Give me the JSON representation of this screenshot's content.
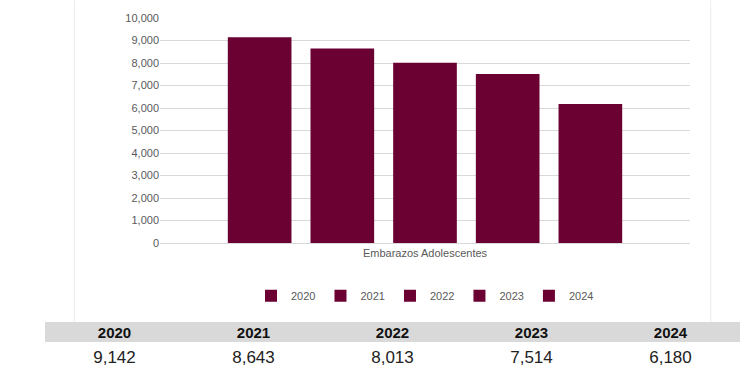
{
  "chart_data": {
    "type": "bar",
    "categories": [
      "Embarazos Adolescentes"
    ],
    "series": [
      {
        "name": "2020",
        "color": "#6b0033",
        "values": [
          9142
        ]
      },
      {
        "name": "2021",
        "color": "#6b0033",
        "values": [
          8643
        ]
      },
      {
        "name": "2022",
        "color": "#6b0033",
        "values": [
          8013
        ]
      },
      {
        "name": "2023",
        "color": "#6b0033",
        "values": [
          7514
        ]
      },
      {
        "name": "2024",
        "color": "#6b0033",
        "values": [
          6180
        ]
      }
    ],
    "ylim": [
      0,
      10000
    ],
    "yticks": [
      0,
      {
        "value": 1000,
        "label": "1,000"
      },
      {
        "value": 2000,
        "label": "2,000"
      },
      {
        "value": 3000,
        "label": "3,000"
      },
      {
        "value": 4000,
        "label": "4,000"
      },
      {
        "value": 5000,
        "label": "5,000"
      },
      {
        "value": 6000,
        "label": "6,000"
      },
      {
        "value": 7000,
        "label": "7,000"
      },
      {
        "value": 8000,
        "label": "8,000"
      },
      {
        "value": 9000,
        "label": "9,000"
      },
      {
        "value": 10000,
        "label": "10,000"
      }
    ],
    "grid": true,
    "legend": "bottom"
  },
  "table": {
    "header": [
      "2020",
      "2021",
      "2022",
      "2023",
      "2024"
    ],
    "rows": [
      [
        "9,142",
        "8,643",
        "8,013",
        "7,514",
        "6,180"
      ]
    ]
  }
}
